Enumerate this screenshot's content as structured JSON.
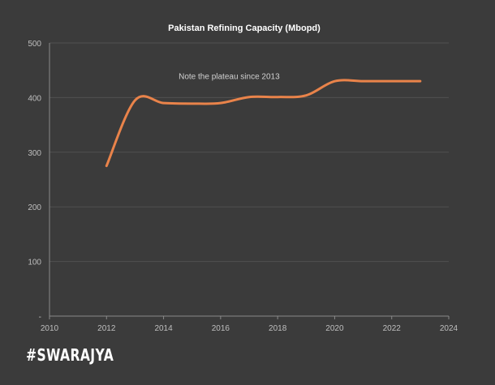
{
  "chart_data": {
    "type": "line",
    "title": "Pakistan Refining Capacity (Mbopd)",
    "xlabel": "",
    "ylabel": "",
    "xlim": [
      2010,
      2024
    ],
    "ylim": [
      0,
      500
    ],
    "x_ticks": [
      "2010",
      "2012",
      "2014",
      "2016",
      "2018",
      "2020",
      "2022",
      "2024"
    ],
    "y_ticks": [
      "-",
      "100",
      "200",
      "300",
      "400",
      "500"
    ],
    "grid": "horizontal",
    "series": [
      {
        "color": "#e9834a",
        "x": [
          2012,
          2013,
          2014,
          2015,
          2016,
          2017,
          2018,
          2019,
          2020,
          2021,
          2022,
          2023
        ],
        "values": [
          275,
          395,
          390,
          389,
          390,
          401,
          401,
          404,
          430,
          430,
          430,
          430
        ]
      }
    ],
    "annotation": {
      "text": "Note the plateau since 2013",
      "x": 2016.3,
      "y": 440
    },
    "colors": {
      "background": "#3b3b3b",
      "grid": "#505050",
      "axis": "#8a8a8a",
      "text": "#bfbfbf",
      "title": "#ffffff"
    }
  },
  "branding": {
    "logo_text": "#SWARAJYA"
  }
}
